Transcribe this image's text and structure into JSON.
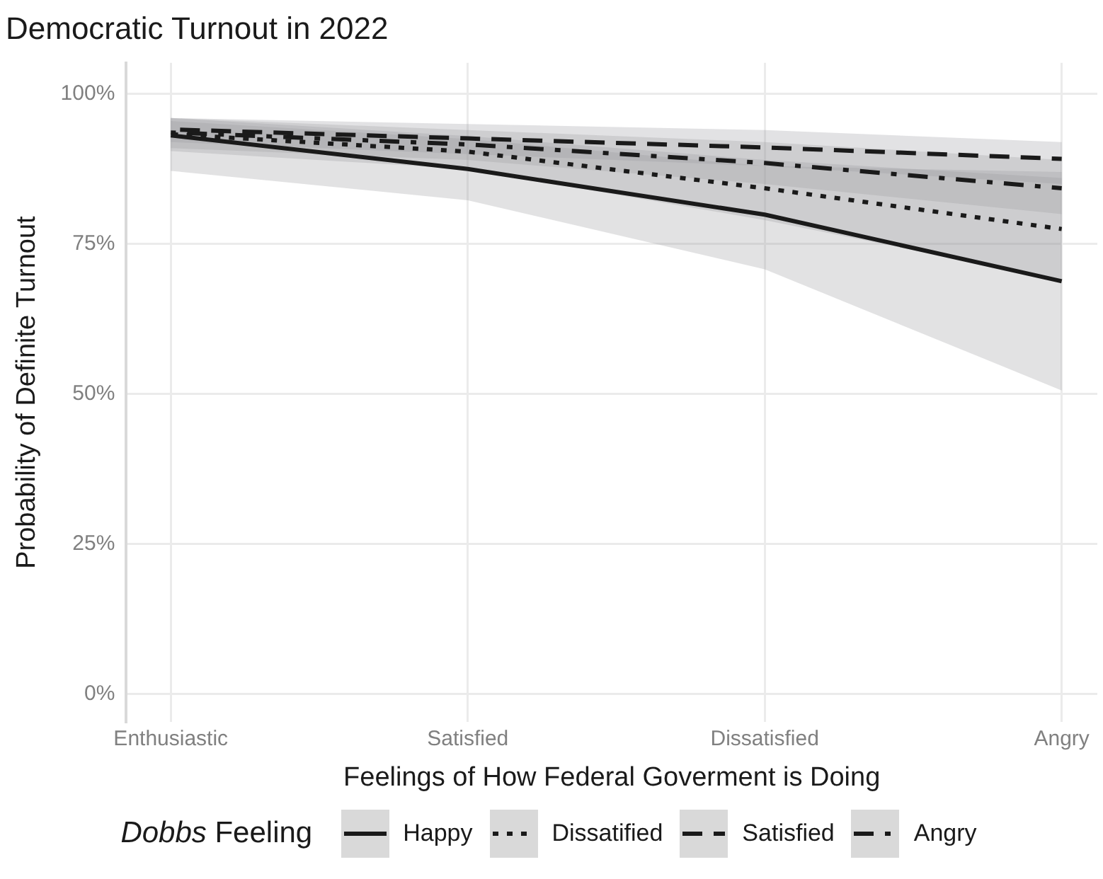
{
  "chart_data": {
    "type": "line",
    "title": "Democratic Turnout in 2022",
    "xlabel": "Feelings of How Federal Goverment is Doing",
    "ylabel": "Probability of Definite Turnout",
    "legend_title": "Dobbs Feeling",
    "categories": [
      "Enthusiastic",
      "Satisfied",
      "Dissatisfied",
      "Angry"
    ],
    "series": [
      {
        "name": "Happy",
        "color": "#1a1a1a",
        "line_style": "solid",
        "values": [
          93.1,
          87.5,
          79.9,
          68.8
        ],
        "lower": [
          87.2,
          82.3,
          70.8,
          50.6
        ],
        "upper": [
          95.5,
          92.5,
          88,
          87
        ]
      },
      {
        "name": "Dissatified",
        "color": "#1a1a1a",
        "line_style": "dotted",
        "values": [
          93.3,
          90.4,
          84.3,
          77.5
        ],
        "lower": [
          90.5,
          87.5,
          79,
          69
        ],
        "upper": [
          96,
          93,
          89,
          86
        ]
      },
      {
        "name": "Satisfied",
        "color": "#1a1a1a",
        "line_style": "dashed",
        "values": [
          94.1,
          92.6,
          91.1,
          89.2
        ],
        "lower": [
          92,
          90,
          88,
          85
        ],
        "upper": [
          96,
          95,
          94,
          92
        ]
      },
      {
        "name": "Angry",
        "color": "#1a1a1a",
        "line_style": "dashdot",
        "values": [
          93.6,
          91.6,
          88.5,
          84.3
        ],
        "lower": [
          91,
          89,
          85,
          80
        ],
        "upper": [
          96,
          94,
          92,
          89
        ]
      }
    ],
    "ylim": [
      -4.7,
      105.2
    ],
    "yticks": [
      {
        "value": 0,
        "label": "0%"
      },
      {
        "value": 25,
        "label": "25%"
      },
      {
        "value": 50,
        "label": "50%"
      },
      {
        "value": 75,
        "label": "75%"
      },
      {
        "value": 100,
        "label": "100%"
      }
    ],
    "grid": true,
    "legend": "bottom",
    "marker": "none"
  }
}
